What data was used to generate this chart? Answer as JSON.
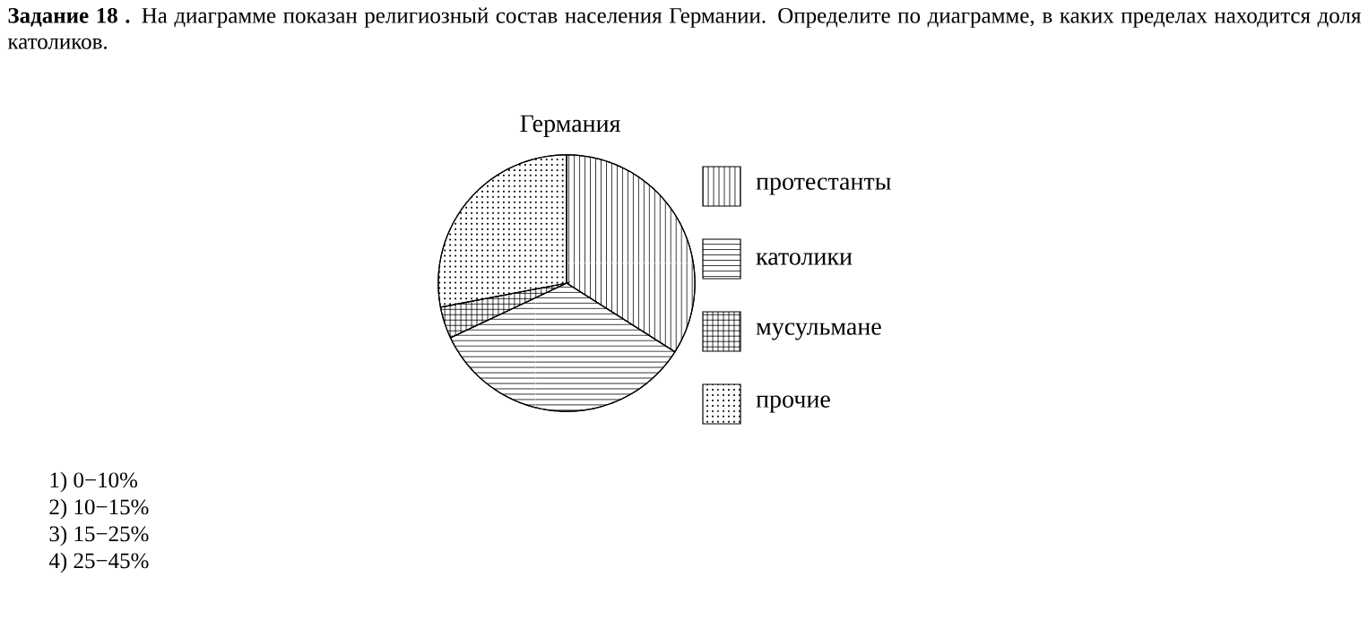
{
  "chart_data": {
    "type": "pie",
    "title": "Германия",
    "categories": [
      "протестанты",
      "католики",
      "мусульмане",
      "прочие"
    ],
    "values": [
      34,
      34,
      4,
      28
    ],
    "colors": [
      "#ffffff",
      "#ffffff",
      "#ffffff",
      "#ffffff"
    ],
    "legend": "right",
    "annotations": [
      "**Задание 18 .** На диаграмме показан религиозный состав населения Германии. Определите по диаграмме, в каких пределах находится доля католиков.",
      "1) 0−10%",
      "2) 10−15%",
      "3) 15−25%",
      "4) 25−45%"
    ]
  }
}
